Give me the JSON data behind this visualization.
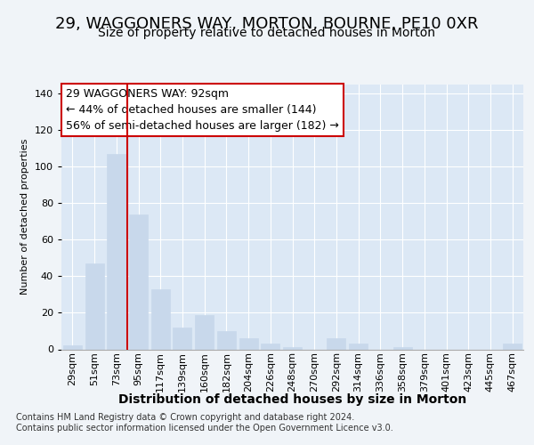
{
  "title1": "29, WAGGONERS WAY, MORTON, BOURNE, PE10 0XR",
  "title2": "Size of property relative to detached houses in Morton",
  "xlabel": "Distribution of detached houses by size in Morton",
  "ylabel": "Number of detached properties",
  "categories": [
    "29sqm",
    "51sqm",
    "73sqm",
    "95sqm",
    "117sqm",
    "139sqm",
    "160sqm",
    "182sqm",
    "204sqm",
    "226sqm",
    "248sqm",
    "270sqm",
    "292sqm",
    "314sqm",
    "336sqm",
    "358sqm",
    "379sqm",
    "401sqm",
    "423sqm",
    "445sqm",
    "467sqm"
  ],
  "values": [
    2,
    47,
    107,
    74,
    33,
    12,
    19,
    10,
    6,
    3,
    1,
    0,
    6,
    3,
    0,
    1,
    0,
    0,
    0,
    0,
    3
  ],
  "bar_color": "#c8d8eb",
  "bar_edge_color": "#c8d8eb",
  "vline_x": 2.5,
  "vline_color": "#cc0000",
  "annotation_text": "29 WAGGONERS WAY: 92sqm\n← 44% of detached houses are smaller (144)\n56% of semi-detached houses are larger (182) →",
  "annotation_box_color": "#ffffff",
  "annotation_box_edge": "#cc0000",
  "ylim": [
    0,
    145
  ],
  "yticks": [
    0,
    20,
    40,
    60,
    80,
    100,
    120,
    140
  ],
  "footer1": "Contains HM Land Registry data © Crown copyright and database right 2024.",
  "footer2": "Contains public sector information licensed under the Open Government Licence v3.0.",
  "bg_color": "#f0f4f8",
  "plot_bg_color": "#dce8f5",
  "grid_color": "#ffffff",
  "title1_fontsize": 13,
  "title2_fontsize": 10,
  "xlabel_fontsize": 10,
  "ylabel_fontsize": 8,
  "tick_fontsize": 8,
  "ann_fontsize": 9,
  "footer_fontsize": 7
}
